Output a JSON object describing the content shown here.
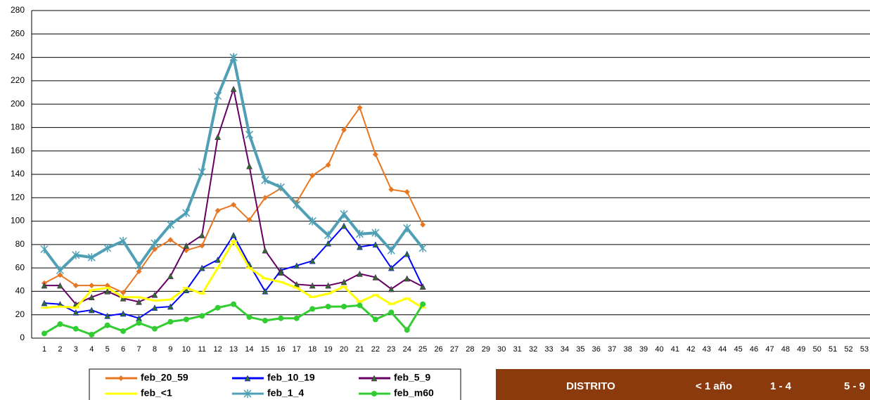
{
  "chart_data": {
    "type": "line",
    "categories": [
      1,
      2,
      3,
      4,
      5,
      6,
      7,
      8,
      9,
      10,
      11,
      12,
      13,
      14,
      15,
      16,
      17,
      18,
      19,
      20,
      21,
      22,
      23,
      24,
      25,
      26,
      27,
      28,
      29,
      30,
      31,
      32,
      33,
      34,
      35,
      36,
      37,
      38,
      39,
      40,
      41,
      42,
      43,
      44,
      45,
      46,
      47,
      48,
      49,
      50,
      51,
      52,
      53
    ],
    "series": [
      {
        "name": "feb_20_59",
        "color": "#E87722",
        "marker": "diamond",
        "values": [
          47,
          54,
          45,
          45,
          45,
          39,
          57,
          76,
          84,
          75,
          79,
          109,
          114,
          101,
          120,
          128,
          116,
          139,
          148,
          178,
          197,
          157,
          127,
          125,
          97,
          null,
          null,
          null,
          null,
          null,
          null,
          null,
          null,
          null,
          null,
          null,
          null,
          null,
          null,
          null,
          null,
          null,
          null,
          null,
          null,
          null,
          null,
          null,
          null,
          null,
          null,
          null,
          null
        ]
      },
      {
        "name": "feb_10_19",
        "color": "#0000FF",
        "marker": "triangle",
        "values": [
          30,
          29,
          22,
          24,
          19,
          21,
          17,
          26,
          27,
          41,
          60,
          67,
          88,
          63,
          40,
          58,
          62,
          66,
          81,
          96,
          78,
          80,
          60,
          72,
          44,
          null,
          null,
          null,
          null,
          null,
          null,
          null,
          null,
          null,
          null,
          null,
          null,
          null,
          null,
          null,
          null,
          null,
          null,
          null,
          null,
          null,
          null,
          null,
          null,
          null,
          null,
          null,
          null
        ]
      },
      {
        "name": "feb_5_9",
        "color": "#660066",
        "marker": "triangle",
        "values": [
          45,
          45,
          29,
          35,
          40,
          34,
          31,
          37,
          53,
          79,
          88,
          172,
          213,
          147,
          75,
          56,
          46,
          45,
          45,
          48,
          55,
          52,
          42,
          51,
          44,
          null,
          null,
          null,
          null,
          null,
          null,
          null,
          null,
          null,
          null,
          null,
          null,
          null,
          null,
          null,
          null,
          null,
          null,
          null,
          null,
          null,
          null,
          null,
          null,
          null,
          null,
          null,
          null
        ]
      },
      {
        "name": "feb_<1",
        "color": "#FFFF00",
        "marker": "dash",
        "values": [
          26,
          27,
          26,
          41,
          43,
          35,
          35,
          32,
          33,
          43,
          38,
          60,
          83,
          60,
          51,
          48,
          43,
          35,
          38,
          44,
          31,
          37,
          29,
          34,
          26,
          null,
          null,
          null,
          null,
          null,
          null,
          null,
          null,
          null,
          null,
          null,
          null,
          null,
          null,
          null,
          null,
          null,
          null,
          null,
          null,
          null,
          null,
          null,
          null,
          null,
          null,
          null,
          null
        ]
      },
      {
        "name": "feb_1_4",
        "color": "#4F9FB5",
        "marker": "star",
        "values": [
          76,
          58,
          71,
          69,
          77,
          83,
          62,
          81,
          97,
          107,
          142,
          207,
          240,
          174,
          135,
          129,
          114,
          100,
          88,
          106,
          89,
          90,
          75,
          94,
          77,
          null,
          null,
          null,
          null,
          null,
          null,
          null,
          null,
          null,
          null,
          null,
          null,
          null,
          null,
          null,
          null,
          null,
          null,
          null,
          null,
          null,
          null,
          null,
          null,
          null,
          null,
          null,
          null
        ]
      },
      {
        "name": "feb_m60",
        "color": "#33CC33",
        "marker": "circle",
        "values": [
          4,
          12,
          8,
          3,
          11,
          6,
          13,
          8,
          14,
          16,
          19,
          26,
          29,
          18,
          15,
          17,
          17,
          25,
          27,
          27,
          28,
          16,
          22,
          7,
          29,
          null,
          null,
          null,
          null,
          null,
          null,
          null,
          null,
          null,
          null,
          null,
          null,
          null,
          null,
          null,
          null,
          null,
          null,
          null,
          null,
          null,
          null,
          null,
          null,
          null,
          null,
          null,
          null
        ]
      }
    ],
    "ylim": [
      0,
      280
    ],
    "yticks": [
      0,
      20,
      40,
      60,
      80,
      100,
      120,
      140,
      160,
      180,
      200,
      220,
      240,
      260,
      280
    ],
    "grid": true,
    "legend": "bottom"
  },
  "table": {
    "headers": [
      "DISTRITO",
      "< 1 año",
      "1 - 4",
      "5 - 9"
    ]
  }
}
